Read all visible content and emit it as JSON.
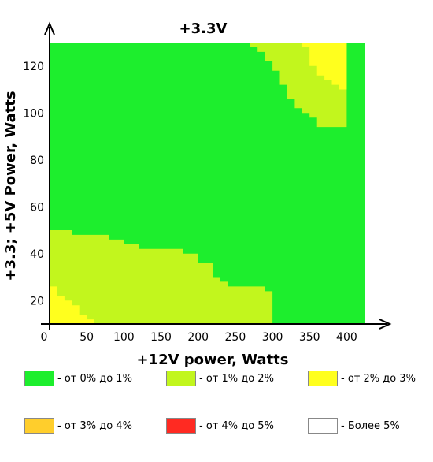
{
  "chart_data": {
    "type": "heatmap",
    "title": "+3.3V",
    "xlabel": "+12V power, Watts",
    "ylabel": "+3.3; +5V Power, Watts",
    "xlim": [
      0,
      425
    ],
    "ylim": [
      10,
      130
    ],
    "x_ticks": [
      0,
      50,
      100,
      150,
      200,
      250,
      300,
      350,
      400
    ],
    "x_tick_labels": [
      "0",
      "50",
      "100",
      "150",
      "200",
      "250",
      "300",
      "350",
      "400"
    ],
    "y_ticks": [
      20,
      40,
      60,
      80,
      100,
      120
    ],
    "y_tick_labels": [
      "20",
      "40",
      "60",
      "80",
      "100",
      "120"
    ],
    "background_level": 0,
    "regions": [
      {
        "level": 1,
        "polygon": [
          [
            0,
            10
          ],
          [
            0,
            50
          ],
          [
            30,
            50
          ],
          [
            30,
            48
          ],
          [
            80,
            48
          ],
          [
            80,
            46
          ],
          [
            100,
            46
          ],
          [
            100,
            44
          ],
          [
            120,
            44
          ],
          [
            120,
            42
          ],
          [
            180,
            42
          ],
          [
            180,
            40
          ],
          [
            200,
            40
          ],
          [
            200,
            36
          ],
          [
            220,
            36
          ],
          [
            220,
            30
          ],
          [
            230,
            30
          ],
          [
            230,
            28
          ],
          [
            240,
            28
          ],
          [
            240,
            26
          ],
          [
            290,
            26
          ],
          [
            290,
            24
          ],
          [
            300,
            24
          ],
          [
            300,
            10
          ]
        ]
      },
      {
        "level": 2,
        "polygon": [
          [
            0,
            10
          ],
          [
            0,
            26
          ],
          [
            10,
            26
          ],
          [
            10,
            22
          ],
          [
            20,
            22
          ],
          [
            20,
            20
          ],
          [
            30,
            20
          ],
          [
            30,
            18
          ],
          [
            40,
            18
          ],
          [
            40,
            14
          ],
          [
            50,
            14
          ],
          [
            50,
            12
          ],
          [
            60,
            12
          ],
          [
            60,
            10
          ]
        ]
      },
      {
        "level": 1,
        "polygon": [
          [
            270,
            130
          ],
          [
            270,
            128
          ],
          [
            280,
            128
          ],
          [
            280,
            126
          ],
          [
            290,
            126
          ],
          [
            290,
            122
          ],
          [
            300,
            122
          ],
          [
            300,
            118
          ],
          [
            310,
            118
          ],
          [
            310,
            112
          ],
          [
            320,
            112
          ],
          [
            320,
            106
          ],
          [
            330,
            106
          ],
          [
            330,
            102
          ],
          [
            340,
            102
          ],
          [
            340,
            100
          ],
          [
            350,
            100
          ],
          [
            350,
            98
          ],
          [
            360,
            98
          ],
          [
            360,
            94
          ],
          [
            400,
            94
          ],
          [
            400,
            130
          ]
        ]
      },
      {
        "level": 2,
        "polygon": [
          [
            340,
            130
          ],
          [
            340,
            128
          ],
          [
            350,
            128
          ],
          [
            350,
            120
          ],
          [
            360,
            120
          ],
          [
            360,
            116
          ],
          [
            370,
            116
          ],
          [
            370,
            114
          ],
          [
            380,
            114
          ],
          [
            380,
            112
          ],
          [
            390,
            112
          ],
          [
            390,
            110
          ],
          [
            400,
            110
          ],
          [
            400,
            130
          ]
        ]
      }
    ],
    "legend": [
      {
        "label": "- от 0% до 1%",
        "color": "#1DEE2D"
      },
      {
        "label": "- от 1% до 2%",
        "color": "#C2F61D"
      },
      {
        "label": "- от 2% до 3%",
        "color": "#FFFF1E"
      },
      {
        "label": "- от 3% до 4%",
        "color": "#FFCE2C"
      },
      {
        "label": "- от 4% до 5%",
        "color": "#FF2A22"
      },
      {
        "label": "- Более 5%",
        "color": "#FFFFFF"
      }
    ]
  }
}
